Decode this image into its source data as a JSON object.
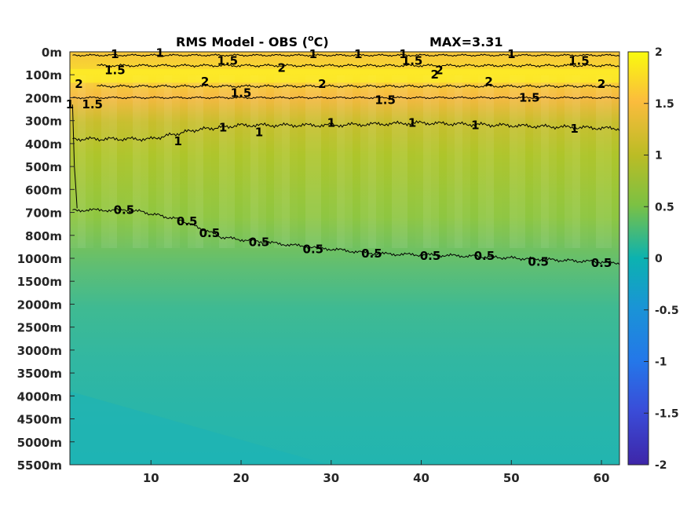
{
  "chart_data": {
    "type": "heatmap",
    "title": "RMS Model - OBS (",
    "title_unit_sup": "o",
    "title_unit_end": "C)",
    "max_label": "MAX=3.31",
    "x_ticks": [
      10,
      20,
      30,
      40,
      50,
      60
    ],
    "xlim": [
      1,
      62
    ],
    "y_labels": [
      "0m",
      "100m",
      "200m",
      "300m",
      "400m",
      "500m",
      "600m",
      "700m",
      "800m",
      "1000m",
      "1500m",
      "2000m",
      "2500m",
      "3000m",
      "3500m",
      "4000m",
      "4500m",
      "5000m",
      "5500m"
    ],
    "colorbar": {
      "range": [
        -2,
        2
      ],
      "ticks": [
        2,
        1.5,
        1,
        0.5,
        0,
        -0.5,
        -1,
        -1.5,
        -2
      ],
      "tick_labels": [
        "2",
        "1.5",
        "1",
        "0.5",
        "0",
        "-0.5",
        "-1",
        "-1.5",
        "-2"
      ],
      "colormap": "parula"
    },
    "depth_profile": [
      {
        "depth": "0m",
        "value": 1.6
      },
      {
        "depth": "100m",
        "value": 1.9
      },
      {
        "depth": "200m",
        "value": 1.4
      },
      {
        "depth": "300m",
        "value": 1.1
      },
      {
        "depth": "400m",
        "value": 0.95
      },
      {
        "depth": "500m",
        "value": 0.85
      },
      {
        "depth": "600m",
        "value": 0.75
      },
      {
        "depth": "700m",
        "value": 0.6
      },
      {
        "depth": "800m",
        "value": 0.55
      },
      {
        "depth": "1000m",
        "value": 0.45
      },
      {
        "depth": "1500m",
        "value": 0.35
      },
      {
        "depth": "2000m",
        "value": 0.25
      },
      {
        "depth": "2500m",
        "value": 0.2
      },
      {
        "depth": "3000m",
        "value": 0.2
      },
      {
        "depth": "3500m",
        "value": 0.2
      },
      {
        "depth": "4000m",
        "value": 0.15
      },
      {
        "depth": "4500m",
        "value": 0.1
      },
      {
        "depth": "5000m",
        "value": 0.1
      },
      {
        "depth": "5500m",
        "value": 0.1
      }
    ],
    "contour_labels": [
      {
        "text": "1",
        "x": 6,
        "depth_index": 0.1
      },
      {
        "text": "1",
        "x": 11,
        "depth_index": 0.05
      },
      {
        "text": "1.5",
        "x": 18.5,
        "depth_index": 0.4
      },
      {
        "text": "2",
        "x": 24.5,
        "depth_index": 0.7
      },
      {
        "text": "1",
        "x": 28,
        "depth_index": 0.1
      },
      {
        "text": "1",
        "x": 33,
        "depth_index": 0.1
      },
      {
        "text": "1",
        "x": 38,
        "depth_index": 0.1
      },
      {
        "text": "1.5",
        "x": 39,
        "depth_index": 0.4
      },
      {
        "text": "2",
        "x": 42,
        "depth_index": 0.8
      },
      {
        "text": "1",
        "x": 50,
        "depth_index": 0.1
      },
      {
        "text": "1.5",
        "x": 57.5,
        "depth_index": 0.4
      },
      {
        "text": "2",
        "x": 2,
        "depth_index": 1.4
      },
      {
        "text": "1.5",
        "x": 6,
        "depth_index": 0.8
      },
      {
        "text": "1.5",
        "x": 3.5,
        "depth_index": 2.3
      },
      {
        "text": "1",
        "x": 1,
        "depth_index": 2.3
      },
      {
        "text": "2",
        "x": 16,
        "depth_index": 1.3
      },
      {
        "text": "2",
        "x": 29,
        "depth_index": 1.4
      },
      {
        "text": "2",
        "x": 41.5,
        "depth_index": 1.0
      },
      {
        "text": "2",
        "x": 47.5,
        "depth_index": 1.3
      },
      {
        "text": "2",
        "x": 60,
        "depth_index": 1.4
      },
      {
        "text": "1.5",
        "x": 20,
        "depth_index": 1.8
      },
      {
        "text": "1.5",
        "x": 36,
        "depth_index": 2.1
      },
      {
        "text": "1.5",
        "x": 52,
        "depth_index": 2.0
      },
      {
        "text": "1",
        "x": 13,
        "depth_index": 3.9
      },
      {
        "text": "1",
        "x": 18,
        "depth_index": 3.3
      },
      {
        "text": "1",
        "x": 22,
        "depth_index": 3.5
      },
      {
        "text": "1",
        "x": 30,
        "depth_index": 3.1
      },
      {
        "text": "1",
        "x": 39,
        "depth_index": 3.1
      },
      {
        "text": "1",
        "x": 46,
        "depth_index": 3.2
      },
      {
        "text": "1",
        "x": 57,
        "depth_index": 3.35
      },
      {
        "text": "0.5",
        "x": 7,
        "depth_index": 6.9
      },
      {
        "text": "0.5",
        "x": 14,
        "depth_index": 7.4
      },
      {
        "text": "0.5",
        "x": 16.5,
        "depth_index": 7.9
      },
      {
        "text": "0.5",
        "x": 22,
        "depth_index": 8.3
      },
      {
        "text": "0.5",
        "x": 28,
        "depth_index": 8.6
      },
      {
        "text": "0.5",
        "x": 34.5,
        "depth_index": 8.8
      },
      {
        "text": "0.5",
        "x": 41,
        "depth_index": 8.9
      },
      {
        "text": "0.5",
        "x": 47,
        "depth_index": 8.9
      },
      {
        "text": "0.5",
        "x": 53,
        "depth_index": 9.15
      },
      {
        "text": "0.5",
        "x": 60,
        "depth_index": 9.2
      }
    ]
  }
}
